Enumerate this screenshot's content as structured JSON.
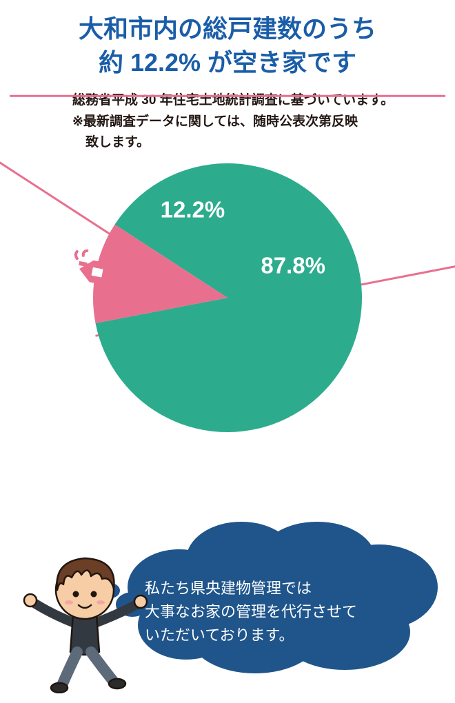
{
  "title": {
    "line1": "大和市内の総戸建数のうち",
    "line2": "約 12.2% が空き家です",
    "color": "#1a5da8",
    "fontsize": 36
  },
  "underline": {
    "color": "#e96f8f",
    "height": 3
  },
  "footnote": {
    "line1": "総務省平成 30 年住宅土地統計調査に基づいています。",
    "line2": "※最新調査データに関しては、随時公表次第反映",
    "line3": "　致します。",
    "fontsize": 19,
    "color": "#231815"
  },
  "pie": {
    "type": "pie",
    "size": 400,
    "radius": 195,
    "slices": [
      {
        "label": "87.8%",
        "value": 87.8,
        "color": "#2cac8d",
        "label_angle_deg": 65,
        "label_r": 105
      },
      {
        "label": "12.2%",
        "value": 12.2,
        "color": "#e96f8f",
        "label_angle_deg": -22,
        "label_r": 135
      }
    ],
    "start_angle_deg": -57,
    "label_fontsize": 33,
    "label_fontweight": 700,
    "label_color": "#ffffff",
    "background_color": "#ffffff"
  },
  "house_icon": {
    "color": "#e96f8f"
  },
  "callout": {
    "stroke": "#e96f8f",
    "stroke_width": 3
  },
  "bubble": {
    "fill": "#1f558b",
    "text_color": "#ffffff",
    "text_fontsize": 22,
    "line1": "私たち県央建物管理では",
    "line2": "大事なお家の管理を代行させて",
    "line3": "いただいております。"
  },
  "character": {
    "hair_color": "#6b3e26",
    "skin_color": "#f7cda6",
    "shirt_color": "#333940",
    "pants_color": "#5c6a7a",
    "shoe_color": "#2b2b2b",
    "outline": "#21160f"
  }
}
